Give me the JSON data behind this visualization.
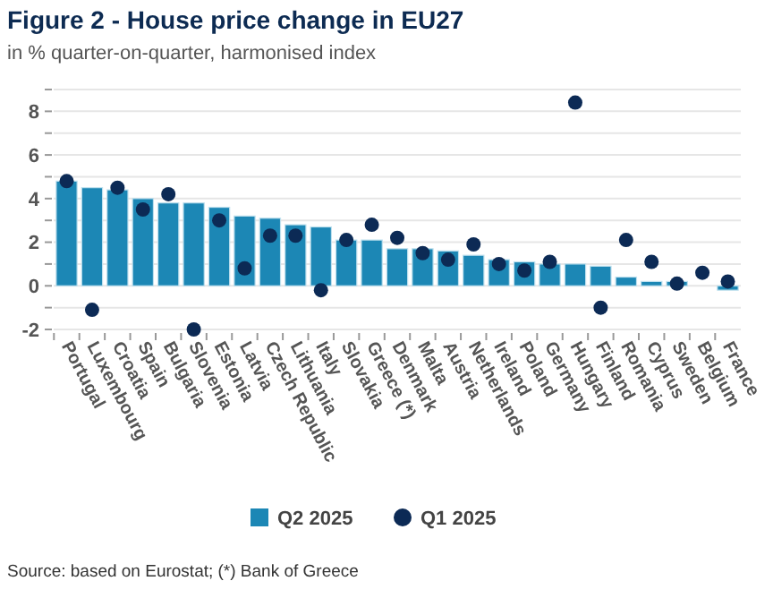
{
  "chart_data": {
    "type": "bar",
    "title": "Figure 2 - House price change in EU27",
    "subtitle": "in % quarter-on-quarter, harmonised index",
    "categories": [
      "Portugal",
      "Luxembourg",
      "Croatia",
      "Spain",
      "Bulgaria",
      "Slovenia",
      "Estonia",
      "Latvia",
      "Czech Republic",
      "Lithuania",
      "Italy",
      "Slovakia",
      "Greece (*)",
      "Denmark",
      "Malta",
      "Austria",
      "Netherlands",
      "Ireland",
      "Poland",
      "Germany",
      "Hungary",
      "Finland",
      "Romania",
      "Cyprus",
      "Sweden",
      "Belgium",
      "France"
    ],
    "series": [
      {
        "name": "Q2 2025",
        "color": "#1c87b5",
        "values": [
          4.8,
          4.5,
          4.4,
          4.0,
          3.8,
          3.8,
          3.6,
          3.2,
          3.1,
          2.8,
          2.7,
          2.1,
          2.1,
          1.7,
          1.7,
          1.6,
          1.4,
          1.2,
          1.1,
          1.0,
          1.0,
          0.9,
          0.4,
          0.2,
          0.2,
          0.0,
          -0.2
        ]
      },
      {
        "name": "Q1 2025",
        "type": "scatter",
        "color": "#0c2a55",
        "marker": "circle",
        "values": [
          4.8,
          -1.1,
          4.5,
          3.5,
          4.2,
          -2.0,
          3.0,
          0.8,
          2.3,
          2.3,
          -0.2,
          2.1,
          2.8,
          2.2,
          1.5,
          1.2,
          1.9,
          1.0,
          0.7,
          1.1,
          8.4,
          -1.0,
          2.1,
          1.1,
          0.1,
          0.6,
          0.2
        ]
      }
    ],
    "ylim": [
      -2,
      9
    ],
    "yticks": [
      -2,
      {
        "value": -1,
        "label": null
      },
      0,
      {
        "value": 1,
        "label": null
      },
      2,
      {
        "value": 3,
        "label": null
      },
      4,
      {
        "value": 5,
        "label": null
      },
      6,
      {
        "value": 7,
        "label": null
      },
      8,
      {
        "value": 9,
        "label": null
      }
    ],
    "grid": "y",
    "legend": "bottom",
    "annotations": [
      "Source: based on Eurostat; (*) Bank of Greece"
    ]
  }
}
